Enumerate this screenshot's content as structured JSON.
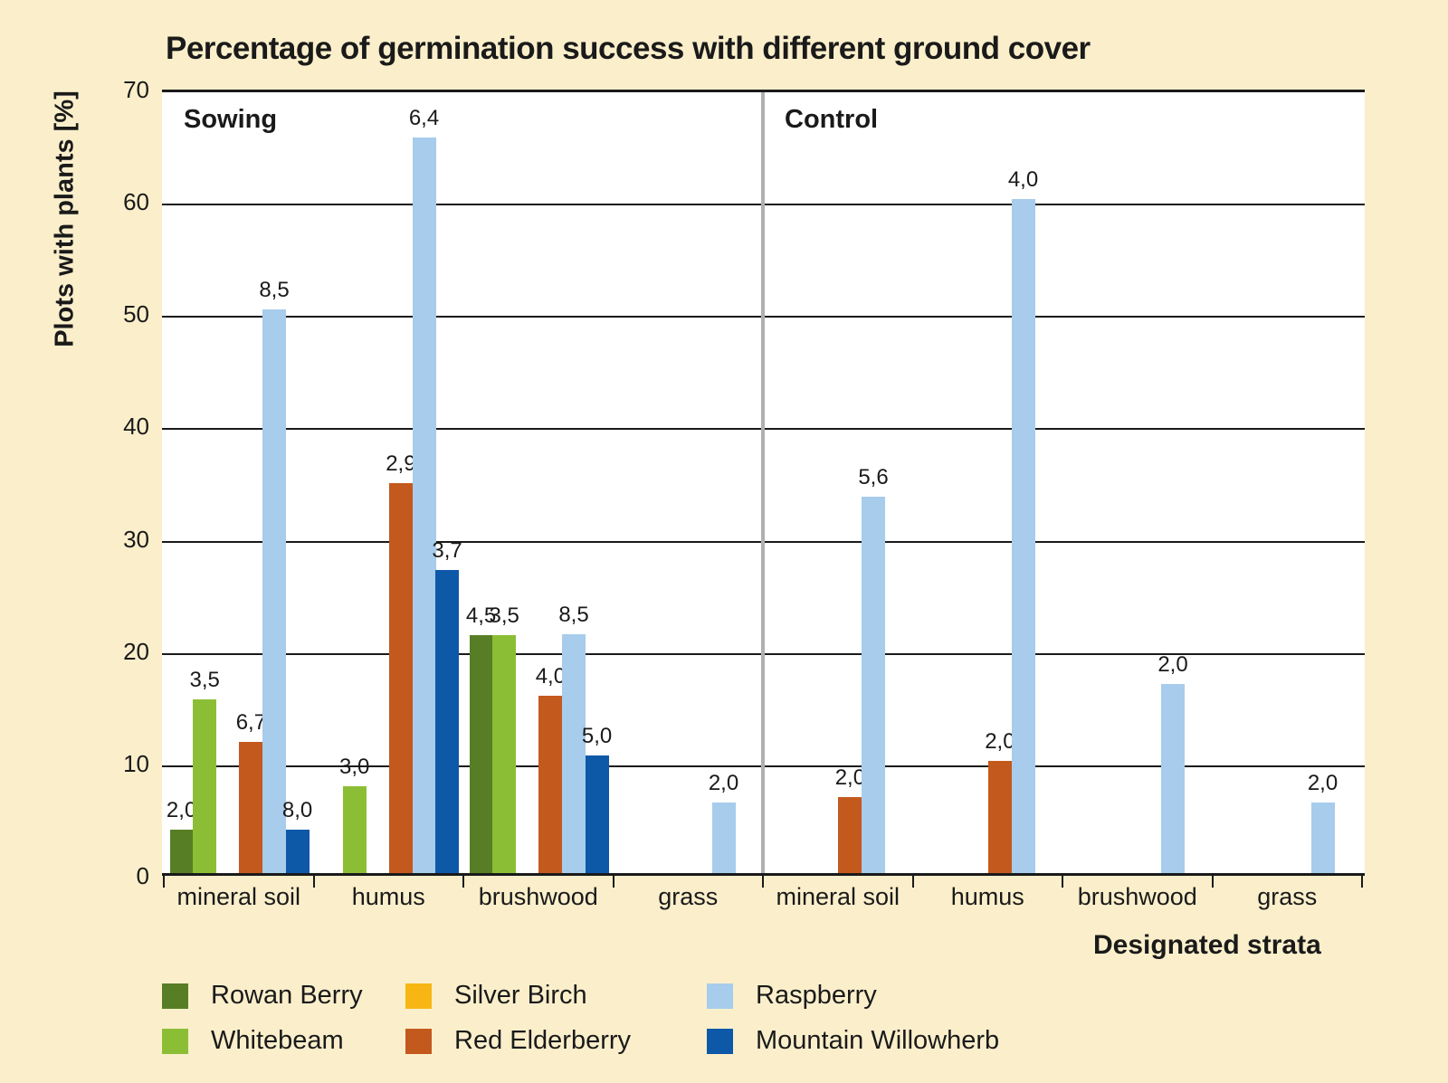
{
  "chart_data": {
    "type": "bar",
    "title": "Percentage of germination success with different ground cover",
    "ylabel": "Plots with plants [%]",
    "xlabel": "Designated strata",
    "ylim": [
      0,
      70
    ],
    "yticks": [
      0,
      10,
      20,
      30,
      40,
      50,
      60,
      70
    ],
    "grid": true,
    "decimal_separator": ",",
    "note": "Bar height = plots with plants in percent; printed label above each bar is the value shown in the figure",
    "species": [
      {
        "name": "Rowan Berry",
        "slot": 0,
        "color": "#577E24"
      },
      {
        "name": "Whitebeam",
        "slot": 1,
        "color": "#8CBE35"
      },
      {
        "name": "Silver Birch",
        "slot": 2,
        "color": "#F8B615"
      },
      {
        "name": "Red Elderberry",
        "slot": 3,
        "color": "#C4591D"
      },
      {
        "name": "Raspberry",
        "slot": 4,
        "color": "#A7CCEC"
      },
      {
        "name": "Mountain Willowherb",
        "slot": 5,
        "color": "#0E58A8"
      }
    ],
    "sections": [
      {
        "name": "Sowing",
        "groups": [
          {
            "category": "mineral soil",
            "bars": [
              {
                "species": "Rowan Berry",
                "height_pct": 3.9,
                "label": "2,0"
              },
              {
                "species": "Whitebeam",
                "height_pct": 15.5,
                "label": "3,5"
              },
              {
                "species": "Red Elderberry",
                "height_pct": 11.7,
                "label": "6,7"
              },
              {
                "species": "Raspberry",
                "height_pct": 50.2,
                "label": "8,5"
              },
              {
                "species": "Mountain Willowherb",
                "height_pct": 3.9,
                "label": "8,0"
              }
            ]
          },
          {
            "category": "humus",
            "bars": [
              {
                "species": "Whitebeam",
                "height_pct": 7.7,
                "label": "3,0"
              },
              {
                "species": "Red Elderberry",
                "height_pct": 34.7,
                "label": "2,9"
              },
              {
                "species": "Raspberry",
                "height_pct": 65.5,
                "label": "6,4"
              },
              {
                "species": "Mountain Willowherb",
                "height_pct": 27.0,
                "label": "3,7"
              }
            ]
          },
          {
            "category": "brushwood",
            "bars": [
              {
                "species": "Rowan Berry",
                "height_pct": 21.2,
                "label": "4,5"
              },
              {
                "species": "Whitebeam",
                "height_pct": 21.2,
                "label": "3,5"
              },
              {
                "species": "Red Elderberry",
                "height_pct": 15.8,
                "label": "4,0"
              },
              {
                "species": "Raspberry",
                "height_pct": 21.3,
                "label": "8,5"
              },
              {
                "species": "Mountain Willowherb",
                "height_pct": 10.5,
                "label": "5,0"
              }
            ]
          },
          {
            "category": "grass",
            "bars": [
              {
                "species": "Raspberry",
                "height_pct": 6.3,
                "label": "2,0"
              }
            ]
          }
        ]
      },
      {
        "name": "Control",
        "groups": [
          {
            "category": "mineral soil",
            "bars": [
              {
                "species": "Red Elderberry",
                "height_pct": 6.8,
                "label": "2,0"
              },
              {
                "species": "Raspberry",
                "height_pct": 33.5,
                "label": "5,6"
              }
            ]
          },
          {
            "category": "humus",
            "bars": [
              {
                "species": "Red Elderberry",
                "height_pct": 10.0,
                "label": "2,0"
              },
              {
                "species": "Raspberry",
                "height_pct": 60.0,
                "label": "4,0"
              }
            ]
          },
          {
            "category": "brushwood",
            "bars": [
              {
                "species": "Raspberry",
                "height_pct": 16.8,
                "label": "2,0"
              }
            ]
          },
          {
            "category": "grass",
            "bars": [
              {
                "species": "Raspberry",
                "height_pct": 6.3,
                "label": "2,0"
              }
            ]
          }
        ]
      }
    ],
    "legend_rows": [
      [
        "Rowan Berry",
        "Silver Birch",
        "Raspberry"
      ],
      [
        "Whitebeam",
        "Red Elderberry",
        "Mountain Willowherb"
      ]
    ],
    "legend_position": "bottom"
  },
  "colors": {
    "background": "#FBEFCB",
    "plot_background": "#FFFFFF",
    "grid": "#1A1A1A",
    "text": "#1A1A1A",
    "section_divider": "#B0B0B0"
  }
}
